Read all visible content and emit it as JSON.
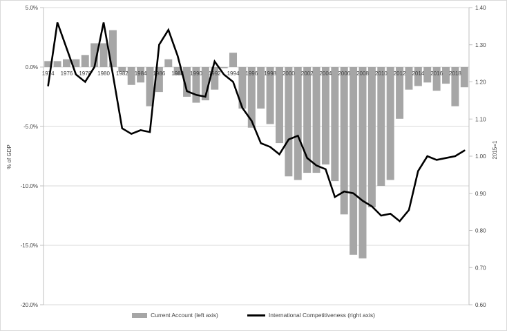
{
  "chart_data": {
    "type": "bar+line combo",
    "title": "",
    "x": [
      1974,
      1975,
      1976,
      1977,
      1978,
      1979,
      1980,
      1981,
      1982,
      1983,
      1984,
      1985,
      1986,
      1987,
      1988,
      1989,
      1990,
      1991,
      1992,
      1993,
      1994,
      1995,
      1996,
      1997,
      1998,
      1999,
      2000,
      2001,
      2002,
      2003,
      2004,
      2005,
      2006,
      2007,
      2008,
      2009,
      2010,
      2011,
      2012,
      2013,
      2014,
      2015,
      2016,
      2017,
      2018,
      2019
    ],
    "x_axis": {
      "label_every": 2,
      "first_label": "1974",
      "last_label": "2018"
    },
    "series": [
      {
        "name": "Current Account (left axis)",
        "type": "bar",
        "axis": "left",
        "color": "#a6a6a6",
        "values": [
          0.5,
          0.5,
          0.65,
          0.65,
          1.0,
          2.0,
          2.0,
          3.1,
          -0.4,
          -1.5,
          -1.3,
          -3.3,
          -2.1,
          0.65,
          -0.7,
          -2.5,
          -3.0,
          -2.8,
          -1.9,
          -0.1,
          1.2,
          -3.5,
          -5.1,
          -3.5,
          -4.8,
          -6.4,
          -9.2,
          -9.5,
          -8.9,
          -8.9,
          -8.2,
          -9.6,
          -12.4,
          -15.8,
          -16.1,
          -11.8,
          -10.0,
          -9.5,
          -4.35,
          -1.9,
          -1.6,
          -1.3,
          -2.0,
          -1.4,
          -3.3,
          -1.7
        ]
      },
      {
        "name": "International Competitiveness (right axis)",
        "type": "line",
        "axis": "right",
        "color": "#000000",
        "values": [
          1.19,
          1.36,
          1.29,
          1.22,
          1.2,
          1.24,
          1.36,
          1.22,
          1.075,
          1.06,
          1.07,
          1.065,
          1.3,
          1.34,
          1.27,
          1.175,
          1.165,
          1.16,
          1.255,
          1.22,
          1.2,
          1.13,
          1.095,
          1.035,
          1.025,
          1.005,
          1.045,
          1.055,
          0.995,
          0.975,
          0.965,
          0.89,
          0.905,
          0.9,
          0.88,
          0.865,
          0.84,
          0.845,
          0.825,
          0.855,
          0.96,
          1.0,
          0.99,
          0.995,
          1.0,
          1.015
        ]
      }
    ],
    "left_axis": {
      "title": "% of GDP",
      "min": -20,
      "max": 5,
      "tick_values": [
        5,
        0,
        -5,
        -10,
        -15,
        -20
      ],
      "tick_labels": [
        "5.0%",
        "0.0%",
        "-5.0%",
        "-10.0%",
        "-15.0%",
        "-20.0%"
      ]
    },
    "right_axis": {
      "title": "2015=1",
      "min": 0.6,
      "max": 1.4,
      "tick_values": [
        1.4,
        1.3,
        1.2,
        1.1,
        1.0,
        0.9,
        0.8,
        0.7,
        0.6
      ],
      "tick_labels": [
        "1.40",
        "1.30",
        "1.20",
        "1.10",
        "1.00",
        "0.90",
        "0.80",
        "0.70",
        "0.60"
      ]
    },
    "grid": true,
    "legend_position": "bottom",
    "legend": {
      "bar_label": "Current Account (left axis)",
      "line_label": "International Competitiveness (right axis)"
    }
  },
  "styles": {
    "bar_color": "#a6a6a6",
    "line_color": "#000000",
    "grid_color": "#d9d9d9",
    "axis_line_color": "#bfbfbf",
    "text_color": "#404040",
    "background": "#ffffff"
  }
}
